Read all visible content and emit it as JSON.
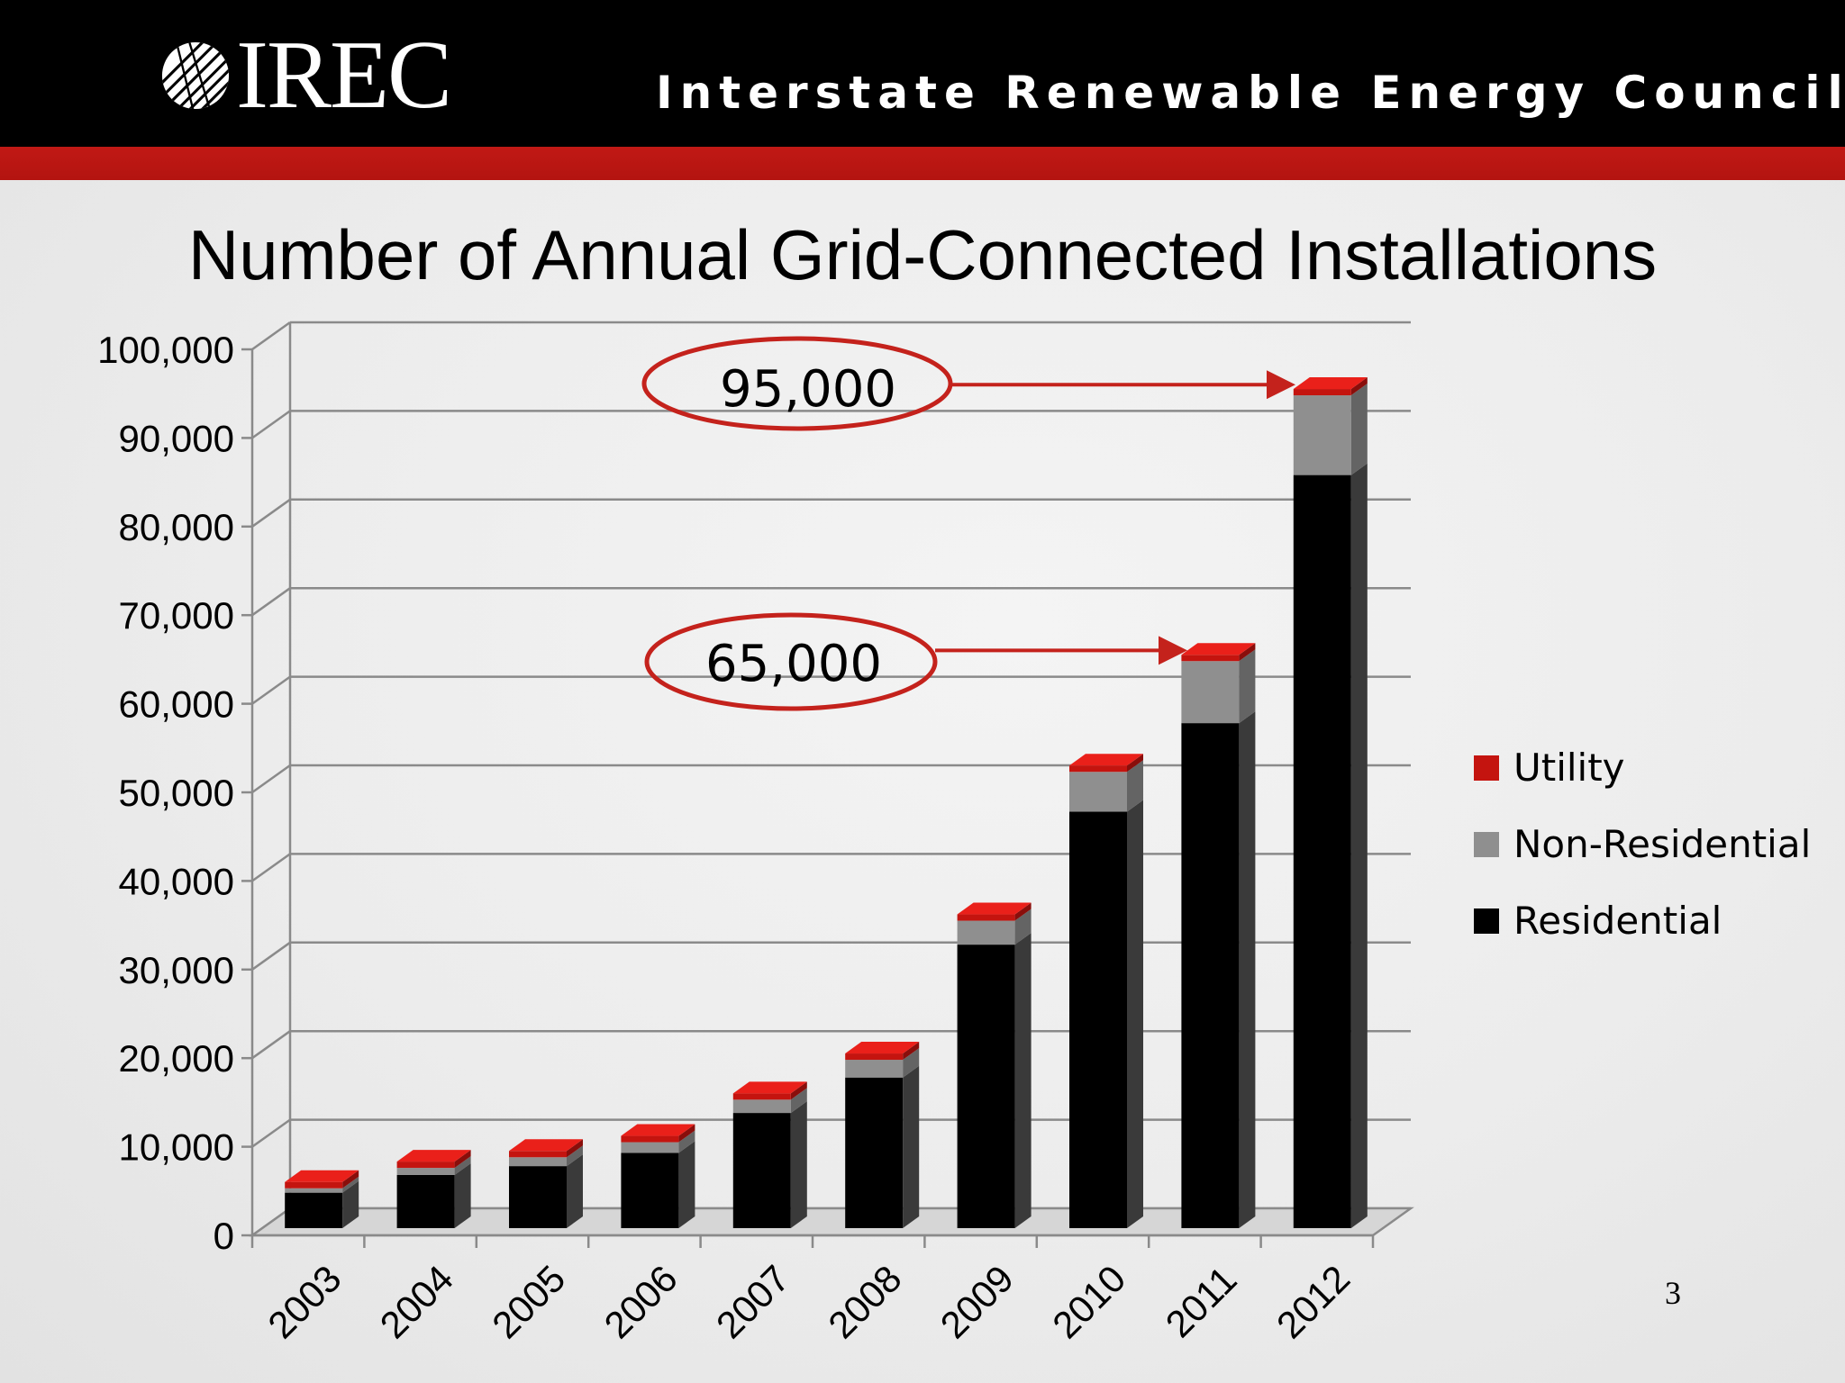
{
  "header": {
    "logo_text": "IREC",
    "tagline": "Interstate Renewable Energy Council"
  },
  "page_number": "3",
  "colors": {
    "header_bg": "#000000",
    "accent_red": "#c11915",
    "residential": "#000000",
    "non_residential": "#8f8f8f",
    "utility": "#c4140f"
  },
  "chart_data": {
    "type": "bar",
    "stacked": true,
    "three_d": true,
    "title": "Number of  Annual Grid-Connected Installations",
    "categories": [
      "2003",
      "2004",
      "2005",
      "2006",
      "2007",
      "2008",
      "2009",
      "2010",
      "2011",
      "2012"
    ],
    "series": [
      {
        "name": "Residential",
        "color": "#000000",
        "values": [
          4000,
          6000,
          7000,
          8500,
          13000,
          17000,
          32000,
          47000,
          57000,
          85000
        ]
      },
      {
        "name": "Non-Residential",
        "color": "#8f8f8f",
        "values": [
          500,
          800,
          1000,
          1200,
          1500,
          2000,
          2700,
          4500,
          7000,
          9000
        ]
      },
      {
        "name": "Utility",
        "color": "#c4140f",
        "values": [
          100,
          100,
          100,
          100,
          100,
          100,
          100,
          100,
          100,
          100
        ]
      }
    ],
    "ylim": [
      0,
      100000
    ],
    "yticks": [
      "0",
      "10,000",
      "20,000",
      "30,000",
      "40,000",
      "50,000",
      "60,000",
      "70,000",
      "80,000",
      "90,000",
      "100,000"
    ],
    "legend_order": [
      "Utility",
      "Non-Residential",
      "Residential"
    ],
    "legend_position": "right",
    "grid": true,
    "annotations": [
      {
        "text": "95,000",
        "points_to": "2012",
        "value": 95000
      },
      {
        "text": "65,000",
        "points_to": "2011",
        "value": 65000
      }
    ]
  }
}
